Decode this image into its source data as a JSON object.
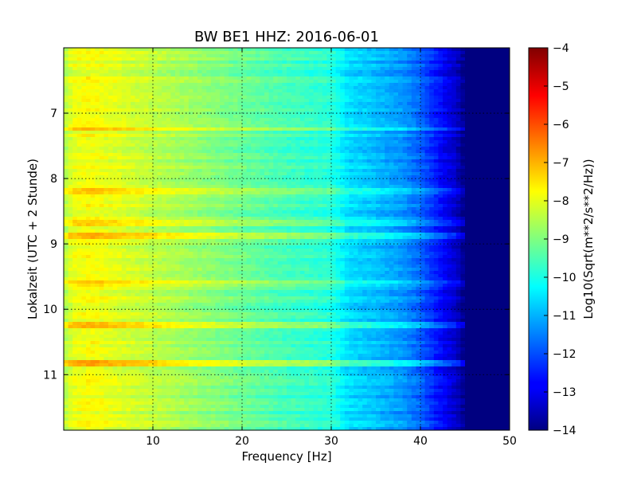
{
  "chart_data": {
    "type": "heatmap",
    "title": "BW BE1 HHZ: 2016-06-01",
    "xlabel": "Frequency [Hz]",
    "ylabel": "Lokalzeit (UTC + 2 Stunde)",
    "colorbar_label": "Log10(Sqrt(m**2/s**2/Hz))",
    "xlim": [
      0,
      50
    ],
    "ylim": [
      11.85,
      6.0
    ],
    "y_inverted": true,
    "x_ticks": [
      10,
      20,
      30,
      40,
      50
    ],
    "x_tick_labels": [
      "10",
      "20",
      "30",
      "40",
      "50"
    ],
    "y_ticks": [
      7,
      8,
      9,
      10,
      11
    ],
    "y_tick_labels": [
      "7",
      "8",
      "9",
      "10",
      "11"
    ],
    "clim": [
      -14,
      -4
    ],
    "colorbar_ticks": [
      -4,
      -5,
      -6,
      -7,
      -8,
      -9,
      -10,
      -11,
      -12,
      -13,
      -14
    ],
    "colorbar_tick_labels": [
      "−4",
      "−5",
      "−6",
      "−7",
      "−8",
      "−9",
      "−10",
      "−11",
      "−12",
      "−13",
      "−14"
    ],
    "colormap": "jet",
    "grid": true,
    "frequency_profile": [
      {
        "x": 0,
        "z": -8.6
      },
      {
        "x": 1,
        "z": -8.0
      },
      {
        "x": 3,
        "z": -7.8
      },
      {
        "x": 5,
        "z": -8.0
      },
      {
        "x": 10,
        "z": -8.4
      },
      {
        "x": 15,
        "z": -8.8
      },
      {
        "x": 20,
        "z": -9.2
      },
      {
        "x": 25,
        "z": -9.6
      },
      {
        "x": 30,
        "z": -9.9
      },
      {
        "x": 32,
        "z": -10.6
      },
      {
        "x": 35,
        "z": -10.9
      },
      {
        "x": 38,
        "z": -11.3
      },
      {
        "x": 40,
        "z": -11.8
      },
      {
        "x": 42,
        "z": -12.6
      },
      {
        "x": 44,
        "z": -13.3
      },
      {
        "x": 45,
        "z": -14.0
      },
      {
        "x": 50,
        "z": -14.0
      }
    ],
    "event_bands": [
      {
        "time": 7.1,
        "delta": 0.3
      },
      {
        "time": 7.25,
        "delta": 0.9
      },
      {
        "time": 8.2,
        "delta": 0.8
      },
      {
        "time": 8.68,
        "delta": 0.6
      },
      {
        "time": 8.87,
        "delta": 1.1
      },
      {
        "time": 9.62,
        "delta": 0.5
      },
      {
        "time": 10.23,
        "delta": 0.8
      },
      {
        "time": 10.83,
        "delta": 1.1
      }
    ]
  }
}
